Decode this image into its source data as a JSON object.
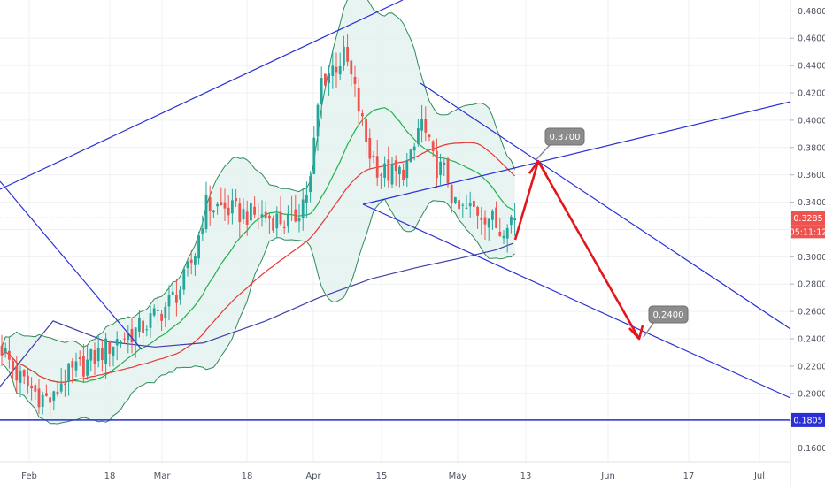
{
  "chart_data": {
    "type": "candlestick",
    "x_axis": {
      "labels": [
        "Feb",
        "18",
        "Mar",
        "18",
        "Apr",
        "15",
        "May",
        "13",
        "Jun",
        "17",
        "Jul"
      ]
    },
    "y_axis": {
      "range": [
        0.15,
        0.488
      ],
      "ticks": [
        "0.4800",
        "0.4600",
        "0.4400",
        "0.4200",
        "0.4000",
        "0.3800",
        "0.3600",
        "0.3400",
        "0.3200",
        "0.3000",
        "0.2800",
        "0.2600",
        "0.2400",
        "0.2200",
        "0.2000",
        "0.1800",
        "0.1600"
      ],
      "position": "right"
    },
    "last_price": {
      "value": 0.3285,
      "label": "0.3285",
      "countdown": "05:11:12",
      "color": "#ef5350"
    },
    "support_level": {
      "value": 0.1805,
      "label": "0.1805",
      "color": "#2a2fd6"
    },
    "annotations": [
      {
        "label": "0.3700",
        "value": 0.37
      },
      {
        "label": "0.2400",
        "value": 0.24
      }
    ],
    "grid": true,
    "colors": {
      "up_candle": "#26a69a",
      "down_candle": "#ef5350",
      "bollinger": "#2e8b57",
      "bollinger_fill": "#e3f2ef",
      "ma_fast": "#22b14c",
      "ma_mid": "#e53935",
      "ma_slow": "#3f3fa8",
      "trendlines": "#2a2fd6",
      "projection_arrows": "#e3161c"
    }
  }
}
